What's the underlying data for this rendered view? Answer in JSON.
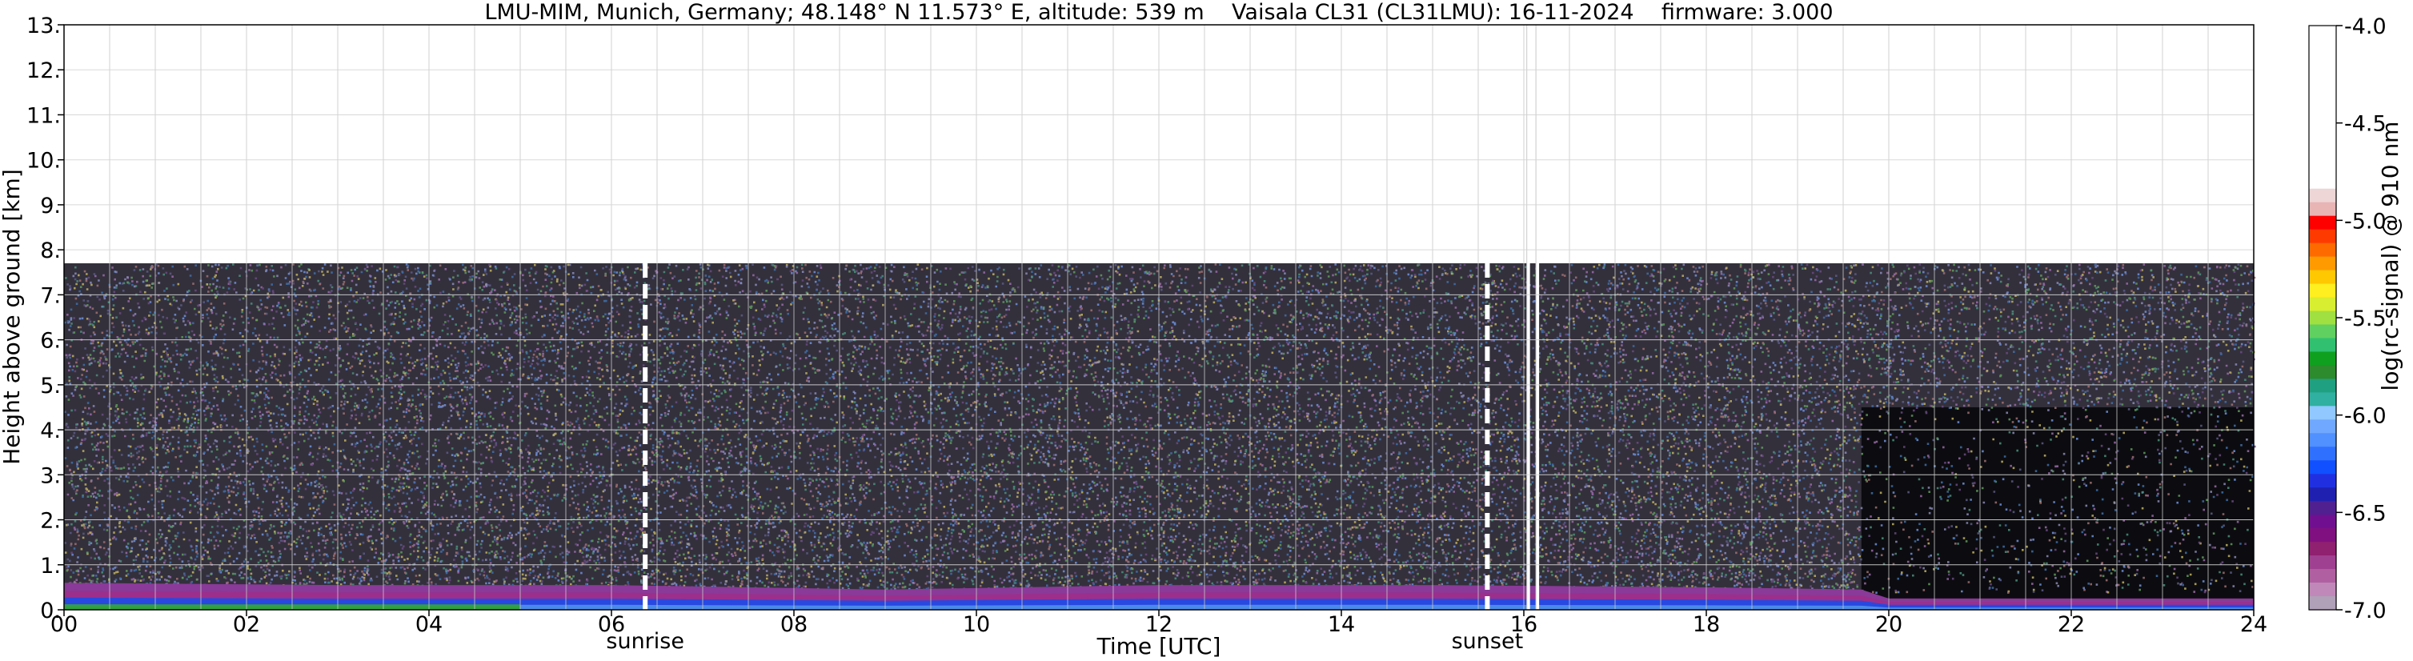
{
  "chart_data": {
    "type": "heatmap",
    "title": "LMU-MIM, Munich, Germany; 48.148° N 11.573° E, altitude: 539 m    Vaisala CL31 (CL31LMU): 16-11-2024    firmware: 3.000",
    "xlabel": "Time [UTC]",
    "ylabel": "Height above ground [km]",
    "xlim": [
      0,
      24
    ],
    "ylim": [
      0,
      13
    ],
    "x_ticks": [
      0,
      2,
      4,
      6,
      8,
      10,
      12,
      14,
      16,
      18,
      20,
      22,
      24
    ],
    "x_tick_labels": [
      "00",
      "02",
      "04",
      "06",
      "08",
      "10",
      "12",
      "14",
      "16",
      "18",
      "20",
      "22",
      "24"
    ],
    "y_ticks": [
      0,
      1,
      2,
      3,
      4,
      5,
      6,
      7,
      8,
      9,
      10,
      11,
      12,
      13
    ],
    "y_tick_labels": [
      "0.",
      "1.",
      "2.",
      "3.",
      "4.",
      "5.",
      "6.",
      "7.",
      "8.",
      "9.",
      "10.",
      "11.",
      "12.",
      "13."
    ],
    "grid": true,
    "data_top_km": 7.7,
    "markers": [
      {
        "label": "sunrise",
        "x": 6.37
      },
      {
        "label": "sunset",
        "x": 15.6
      }
    ],
    "missing_data_lines_x": [
      16.05,
      16.15
    ],
    "low_signal_period": {
      "start": 19.7,
      "end": 24
    },
    "boundary_layer_top_km": [
      {
        "t": 0,
        "h": 0.6
      },
      {
        "t": 3,
        "h": 0.55
      },
      {
        "t": 6,
        "h": 0.55
      },
      {
        "t": 9,
        "h": 0.45
      },
      {
        "t": 12,
        "h": 0.55
      },
      {
        "t": 15,
        "h": 0.55
      },
      {
        "t": 18,
        "h": 0.5
      },
      {
        "t": 19.7,
        "h": 0.45
      },
      {
        "t": 20,
        "h": 0.25
      },
      {
        "t": 24,
        "h": 0.25
      }
    ],
    "colorbar": {
      "label": "log(rc-signal) @ 910 nm",
      "min": -7.0,
      "max": -4.0,
      "ticks": [
        -4.0,
        -4.5,
        -5.0,
        -5.5,
        -6.0,
        -6.5,
        -7.0
      ],
      "tick_labels": [
        "-4.0",
        "-4.5",
        "-5.0",
        "-5.5",
        "-6.0",
        "-6.5",
        "-7.0"
      ],
      "colors_top_to_bottom": [
        "#ffffff",
        "#ffffff",
        "#ffffff",
        "#ffffff",
        "#ffffff",
        "#ffffff",
        "#ffffff",
        "#ffffff",
        "#ffffff",
        "#ffffff",
        "#ffffff",
        "#ffffff",
        "#eed6d6",
        "#e8b4b4",
        "#ff0000",
        "#ff3a00",
        "#ff6a00",
        "#ff9a00",
        "#ffc800",
        "#ffee20",
        "#d8ee30",
        "#a0e040",
        "#60d060",
        "#30c070",
        "#10a020",
        "#2d8a2d",
        "#1fa080",
        "#30b0a0",
        "#90c8ff",
        "#70a8ff",
        "#5090ff",
        "#3070ff",
        "#1050ff",
        "#2030e0",
        "#2020b0",
        "#502090",
        "#701090",
        "#801080",
        "#902070",
        "#a04090",
        "#b060a0",
        "#c088b8",
        "#b0a0b8"
      ]
    }
  }
}
